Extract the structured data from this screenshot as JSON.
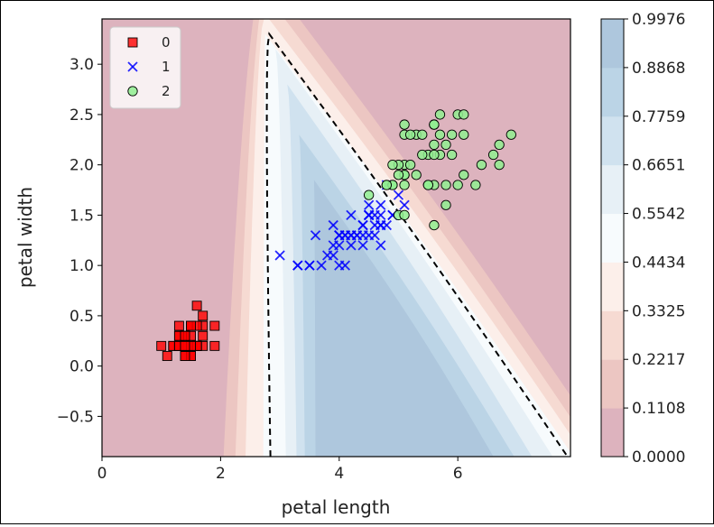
{
  "chart_data": {
    "type": "scatter",
    "title": "",
    "xlabel": "petal length",
    "ylabel": "petal width",
    "xlim": [
      0,
      7.9
    ],
    "ylim": [
      -0.9,
      3.45
    ],
    "x_ticks": [
      0,
      2,
      4,
      6
    ],
    "y_ticks": [
      -0.5,
      0.0,
      0.5,
      1.0,
      1.5,
      2.0,
      2.5,
      3.0
    ],
    "x_tick_labels": [
      "0",
      "2",
      "4",
      "6"
    ],
    "y_tick_labels": [
      "−0.5",
      "0.0",
      "0.5",
      "1.0",
      "1.5",
      "2.0",
      "2.5",
      "3.0"
    ],
    "grid": false,
    "legend_position": "upper-left",
    "background": "probability contour (RdBu), dashed decision boundary at 0.5",
    "series": [
      {
        "name": "0",
        "marker": "square",
        "color": "#ff0000",
        "points": [
          [
            1.4,
            0.2
          ],
          [
            1.4,
            0.2
          ],
          [
            1.3,
            0.2
          ],
          [
            1.5,
            0.2
          ],
          [
            1.4,
            0.2
          ],
          [
            1.7,
            0.4
          ],
          [
            1.4,
            0.3
          ],
          [
            1.5,
            0.2
          ],
          [
            1.4,
            0.2
          ],
          [
            1.5,
            0.1
          ],
          [
            1.5,
            0.2
          ],
          [
            1.6,
            0.2
          ],
          [
            1.4,
            0.1
          ],
          [
            1.1,
            0.1
          ],
          [
            1.2,
            0.2
          ],
          [
            1.5,
            0.4
          ],
          [
            1.3,
            0.4
          ],
          [
            1.4,
            0.3
          ],
          [
            1.7,
            0.3
          ],
          [
            1.5,
            0.3
          ],
          [
            1.7,
            0.2
          ],
          [
            1.5,
            0.4
          ],
          [
            1.0,
            0.2
          ],
          [
            1.7,
            0.5
          ],
          [
            1.9,
            0.2
          ],
          [
            1.6,
            0.2
          ],
          [
            1.6,
            0.4
          ],
          [
            1.5,
            0.2
          ],
          [
            1.4,
            0.2
          ],
          [
            1.6,
            0.2
          ],
          [
            1.6,
            0.2
          ],
          [
            1.5,
            0.4
          ],
          [
            1.5,
            0.1
          ],
          [
            1.4,
            0.2
          ],
          [
            1.5,
            0.2
          ],
          [
            1.2,
            0.2
          ],
          [
            1.3,
            0.2
          ],
          [
            1.4,
            0.1
          ],
          [
            1.3,
            0.2
          ],
          [
            1.5,
            0.2
          ],
          [
            1.3,
            0.3
          ],
          [
            1.3,
            0.3
          ],
          [
            1.3,
            0.2
          ],
          [
            1.6,
            0.6
          ],
          [
            1.9,
            0.4
          ],
          [
            1.4,
            0.3
          ],
          [
            1.6,
            0.2
          ],
          [
            1.4,
            0.2
          ],
          [
            1.5,
            0.2
          ],
          [
            1.4,
            0.2
          ]
        ]
      },
      {
        "name": "1",
        "marker": "x",
        "color": "#0000ff",
        "points": [
          [
            4.7,
            1.4
          ],
          [
            4.5,
            1.5
          ],
          [
            4.9,
            1.5
          ],
          [
            4.0,
            1.3
          ],
          [
            4.6,
            1.5
          ],
          [
            4.5,
            1.3
          ],
          [
            4.7,
            1.6
          ],
          [
            3.3,
            1.0
          ],
          [
            4.6,
            1.3
          ],
          [
            3.9,
            1.4
          ],
          [
            3.5,
            1.0
          ],
          [
            4.2,
            1.5
          ],
          [
            4.0,
            1.0
          ],
          [
            4.7,
            1.4
          ],
          [
            3.6,
            1.3
          ],
          [
            4.4,
            1.4
          ],
          [
            4.5,
            1.5
          ],
          [
            4.1,
            1.0
          ],
          [
            4.5,
            1.5
          ],
          [
            3.9,
            1.1
          ],
          [
            4.8,
            1.8
          ],
          [
            4.0,
            1.3
          ],
          [
            4.9,
            1.5
          ],
          [
            4.7,
            1.2
          ],
          [
            4.3,
            1.3
          ],
          [
            4.4,
            1.4
          ],
          [
            4.8,
            1.4
          ],
          [
            5.0,
            1.7
          ],
          [
            4.5,
            1.5
          ],
          [
            3.5,
            1.0
          ],
          [
            3.8,
            1.1
          ],
          [
            3.7,
            1.0
          ],
          [
            3.9,
            1.2
          ],
          [
            5.1,
            1.6
          ],
          [
            4.5,
            1.5
          ],
          [
            4.5,
            1.6
          ],
          [
            4.7,
            1.5
          ],
          [
            4.4,
            1.3
          ],
          [
            4.1,
            1.3
          ],
          [
            4.0,
            1.3
          ],
          [
            4.4,
            1.2
          ],
          [
            4.6,
            1.4
          ],
          [
            4.0,
            1.2
          ],
          [
            3.3,
            1.0
          ],
          [
            4.2,
            1.3
          ],
          [
            4.2,
            1.2
          ],
          [
            4.2,
            1.3
          ],
          [
            4.3,
            1.3
          ],
          [
            3.0,
            1.1
          ],
          [
            4.1,
            1.3
          ]
        ]
      },
      {
        "name": "2",
        "marker": "circle",
        "color": "#90ee90",
        "points": [
          [
            6.0,
            2.5
          ],
          [
            5.1,
            1.9
          ],
          [
            5.9,
            2.1
          ],
          [
            5.6,
            1.8
          ],
          [
            5.8,
            2.2
          ],
          [
            6.6,
            2.1
          ],
          [
            4.5,
            1.7
          ],
          [
            6.3,
            1.8
          ],
          [
            5.8,
            1.8
          ],
          [
            6.1,
            2.5
          ],
          [
            5.1,
            2.0
          ],
          [
            5.3,
            1.9
          ],
          [
            5.5,
            2.1
          ],
          [
            5.0,
            2.0
          ],
          [
            5.1,
            2.4
          ],
          [
            5.3,
            2.3
          ],
          [
            5.5,
            1.8
          ],
          [
            6.7,
            2.2
          ],
          [
            6.9,
            2.3
          ],
          [
            5.0,
            1.5
          ],
          [
            5.7,
            2.3
          ],
          [
            4.9,
            2.0
          ],
          [
            6.7,
            2.0
          ],
          [
            4.9,
            1.8
          ],
          [
            5.7,
            2.1
          ],
          [
            6.0,
            1.8
          ],
          [
            4.8,
            1.8
          ],
          [
            4.9,
            1.8
          ],
          [
            5.6,
            2.1
          ],
          [
            5.8,
            1.6
          ],
          [
            6.1,
            1.9
          ],
          [
            6.4,
            2.0
          ],
          [
            5.6,
            2.2
          ],
          [
            5.1,
            1.5
          ],
          [
            5.6,
            1.4
          ],
          [
            6.1,
            2.3
          ],
          [
            5.6,
            2.4
          ],
          [
            5.5,
            1.8
          ],
          [
            4.8,
            1.8
          ],
          [
            5.4,
            2.1
          ],
          [
            5.6,
            2.4
          ],
          [
            5.1,
            2.3
          ],
          [
            5.1,
            1.9
          ],
          [
            5.9,
            2.3
          ],
          [
            5.7,
            2.5
          ],
          [
            5.2,
            2.3
          ],
          [
            5.0,
            1.9
          ],
          [
            5.2,
            2.0
          ],
          [
            5.4,
            2.3
          ],
          [
            5.1,
            1.8
          ]
        ]
      }
    ],
    "legend_labels": [
      "0",
      "1",
      "2"
    ],
    "colorbar": {
      "range": [
        0.0,
        0.9976
      ],
      "tick_labels": [
        "0.0000",
        "0.1108",
        "0.2217",
        "0.3325",
        "0.4434",
        "0.5542",
        "0.6651",
        "0.7759",
        "0.8868",
        "0.9976"
      ],
      "colors": [
        "#ddb3be",
        "#ecc6c2",
        "#f6dad2",
        "#fcefea",
        "#f7fbfd",
        "#e7f0f6",
        "#d0e2ef",
        "#bbd4e6",
        "#aec7dd"
      ]
    }
  }
}
